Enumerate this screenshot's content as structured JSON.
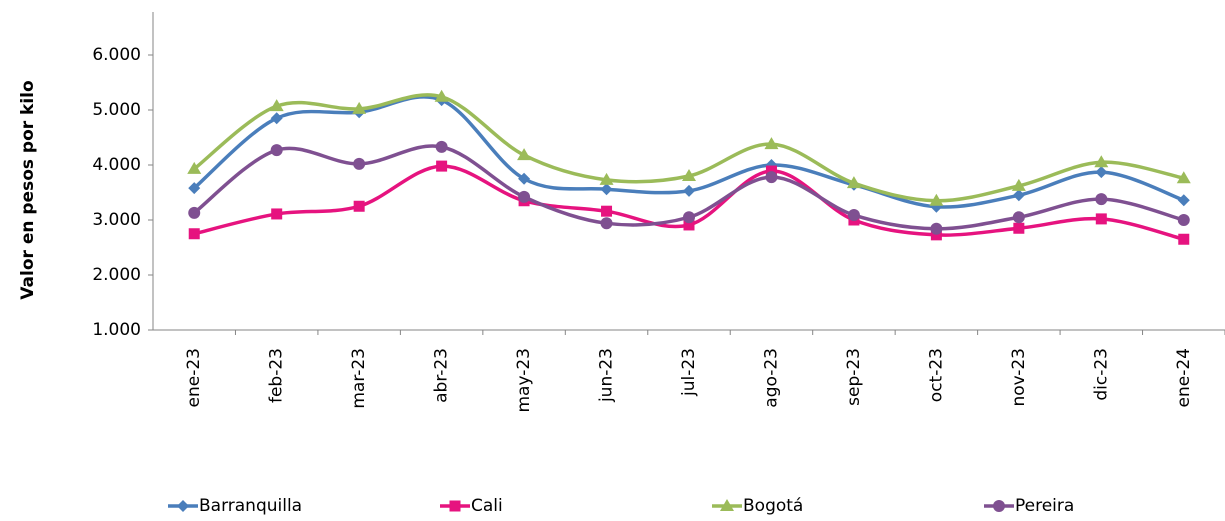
{
  "chart_data": {
    "type": "line",
    "y_label": "Valor en pesos por kilo",
    "categories": [
      "ene-23",
      "feb-23",
      "mar-23",
      "abr-23",
      "may-23",
      "jun-23",
      "jul-23",
      "ago-23",
      "sep-23",
      "oct-23",
      "nov-23",
      "dic-23",
      "ene-24"
    ],
    "ylim": [
      1000,
      6000
    ],
    "yticks": [
      {
        "value": 1000,
        "label": "1.000"
      },
      {
        "value": 2000,
        "label": "2.000"
      },
      {
        "value": 3000,
        "label": "3.000"
      },
      {
        "value": 4000,
        "label": "4.000"
      },
      {
        "value": 5000,
        "label": "5.000"
      },
      {
        "value": 6000,
        "label": "6.000"
      }
    ],
    "smooth": true,
    "legend": "bottom",
    "series": [
      {
        "name": "Barranquilla",
        "color": "#4a7ebb",
        "marker": "diamond",
        "values": [
          3580,
          4850,
          4960,
          5180,
          3750,
          3560,
          3530,
          4000,
          3640,
          3240,
          3450,
          3870,
          3360
        ]
      },
      {
        "name": "Cali",
        "color": "#e6137f",
        "marker": "square",
        "values": [
          2750,
          3110,
          3250,
          3980,
          3350,
          3160,
          2910,
          3890,
          3000,
          2730,
          2850,
          3020,
          2650
        ]
      },
      {
        "name": "Bogotá",
        "color": "#9bbb59",
        "marker": "triangle",
        "values": [
          3930,
          5070,
          5020,
          5240,
          4180,
          3730,
          3800,
          4380,
          3670,
          3350,
          3620,
          4050,
          3760
        ]
      },
      {
        "name": "Pereira",
        "color": "#7f5091",
        "marker": "circle",
        "values": [
          3130,
          4270,
          4020,
          4330,
          3420,
          2940,
          3050,
          3780,
          3090,
          2840,
          3050,
          3380,
          3000
        ]
      }
    ]
  }
}
